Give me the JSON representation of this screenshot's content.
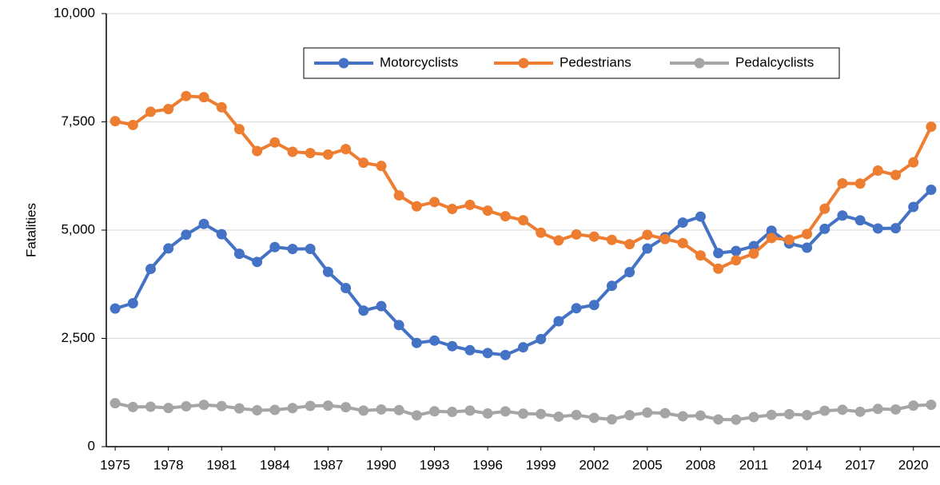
{
  "chart_data": {
    "type": "line",
    "y_label": "Fatalities",
    "x": [
      1975,
      1976,
      1977,
      1978,
      1979,
      1980,
      1981,
      1982,
      1983,
      1984,
      1985,
      1986,
      1987,
      1988,
      1989,
      1990,
      1991,
      1992,
      1993,
      1994,
      1995,
      1996,
      1997,
      1998,
      1999,
      2000,
      2001,
      2002,
      2003,
      2004,
      2005,
      2006,
      2007,
      2008,
      2009,
      2010,
      2011,
      2012,
      2013,
      2014,
      2015,
      2016,
      2017,
      2018,
      2019,
      2020,
      2021
    ],
    "xlim": [
      1974.5,
      2021.5
    ],
    "xticks": [
      1975,
      1978,
      1981,
      1984,
      1987,
      1990,
      1993,
      1996,
      1999,
      2002,
      2005,
      2008,
      2011,
      2014,
      2017,
      2020
    ],
    "ylim": [
      0,
      10000
    ],
    "yticks": [
      0,
      {
        "value": 2500,
        "label": "2,500"
      },
      {
        "value": 5000,
        "label": "5,000"
      },
      {
        "value": 7500,
        "label": "7,500"
      },
      {
        "value": 10000,
        "label": "10,000"
      }
    ],
    "grid": true,
    "legend": "top",
    "series": [
      {
        "name": "Motorcyclists",
        "color": "#4472c4",
        "values": [
          3189,
          3312,
          4104,
          4577,
          4894,
          5144,
          4906,
          4453,
          4265,
          4608,
          4564,
          4566,
          4036,
          3662,
          3141,
          3244,
          2806,
          2395,
          2449,
          2320,
          2227,
          2161,
          2116,
          2294,
          2483,
          2897,
          3197,
          3270,
          3714,
          4028,
          4576,
          4837,
          5174,
          5312,
          4469,
          4518,
          4630,
          4986,
          4692,
          4594,
          5029,
          5337,
          5226,
          5038,
          5044,
          5535,
          5932
        ]
      },
      {
        "name": "Pedestrians",
        "color": "#ed7d31",
        "values": [
          7516,
          7427,
          7732,
          7795,
          8096,
          8070,
          7837,
          7331,
          6826,
          7025,
          6808,
          6779,
          6745,
          6870,
          6556,
          6482,
          5801,
          5549,
          5649,
          5489,
          5584,
          5449,
          5321,
          5228,
          4939,
          4763,
          4901,
          4851,
          4774,
          4675,
          4892,
          4795,
          4699,
          4414,
          4109,
          4302,
          4457,
          4818,
          4779,
          4910,
          5494,
          6080,
          6075,
          6374,
          6272,
          6565,
          7388
        ]
      },
      {
        "name": "Pedalcyclists",
        "color": "#a5a5a5",
        "values": [
          1003,
          915,
          922,
          892,
          932,
          965,
          936,
          883,
          839,
          849,
          890,
          941,
          948,
          911,
          832,
          859,
          843,
          723,
          816,
          802,
          833,
          765,
          814,
          760,
          754,
          693,
          732,
          665,
          629,
          727,
          786,
          772,
          701,
          718,
          628,
          623,
          682,
          734,
          749,
          729,
          829,
          852,
          806,
          871,
          859,
          948,
          966
        ]
      }
    ]
  }
}
